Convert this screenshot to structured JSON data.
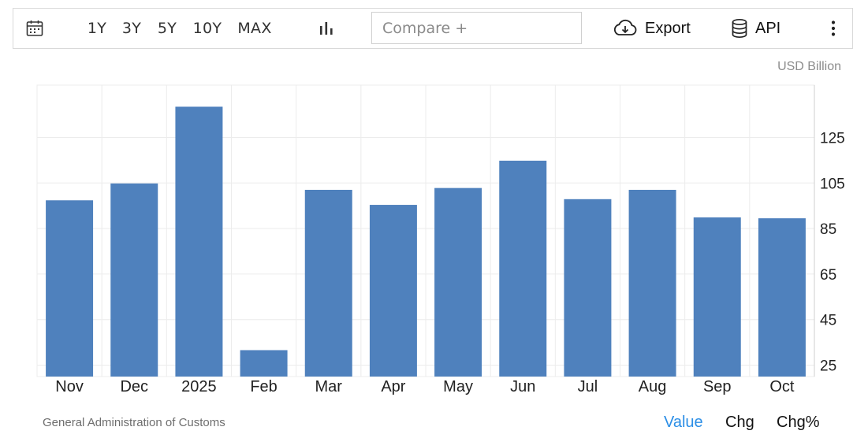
{
  "toolbar": {
    "ranges": [
      "1Y",
      "3Y",
      "5Y",
      "10Y",
      "MAX"
    ],
    "compare_placeholder": "Compare +",
    "export_label": "Export",
    "api_label": "API",
    "icons": {
      "calendar": "calendar-icon",
      "chart_type": "bar-chart-icon",
      "export": "cloud-download-icon",
      "api": "database-icon",
      "more": "more-vertical-icon"
    }
  },
  "unit_label": "USD Billion",
  "source": "General Administration of Customs",
  "view_tabs": [
    {
      "label": "Value",
      "active": true
    },
    {
      "label": "Chg",
      "active": false
    },
    {
      "label": "Chg%",
      "active": false
    }
  ],
  "colors": {
    "bar": "#4f81bd",
    "active_tab": "#2b8ee6",
    "grid": "#ececec"
  },
  "chart_data": {
    "type": "bar",
    "categories": [
      "Nov",
      "Dec",
      "2025",
      "Feb",
      "Mar",
      "Apr",
      "May",
      "Jun",
      "Jul",
      "Aug",
      "Sep",
      "Oct"
    ],
    "values": [
      97.4,
      104.8,
      138.5,
      31.6,
      102.0,
      95.4,
      102.8,
      114.8,
      97.9,
      102.0,
      89.9,
      89.5
    ],
    "yticks": [
      25,
      45,
      65,
      85,
      105,
      125
    ],
    "ylim": [
      20,
      148
    ],
    "y_axis_position": "right",
    "grid": true,
    "unit": "USD Billion"
  }
}
